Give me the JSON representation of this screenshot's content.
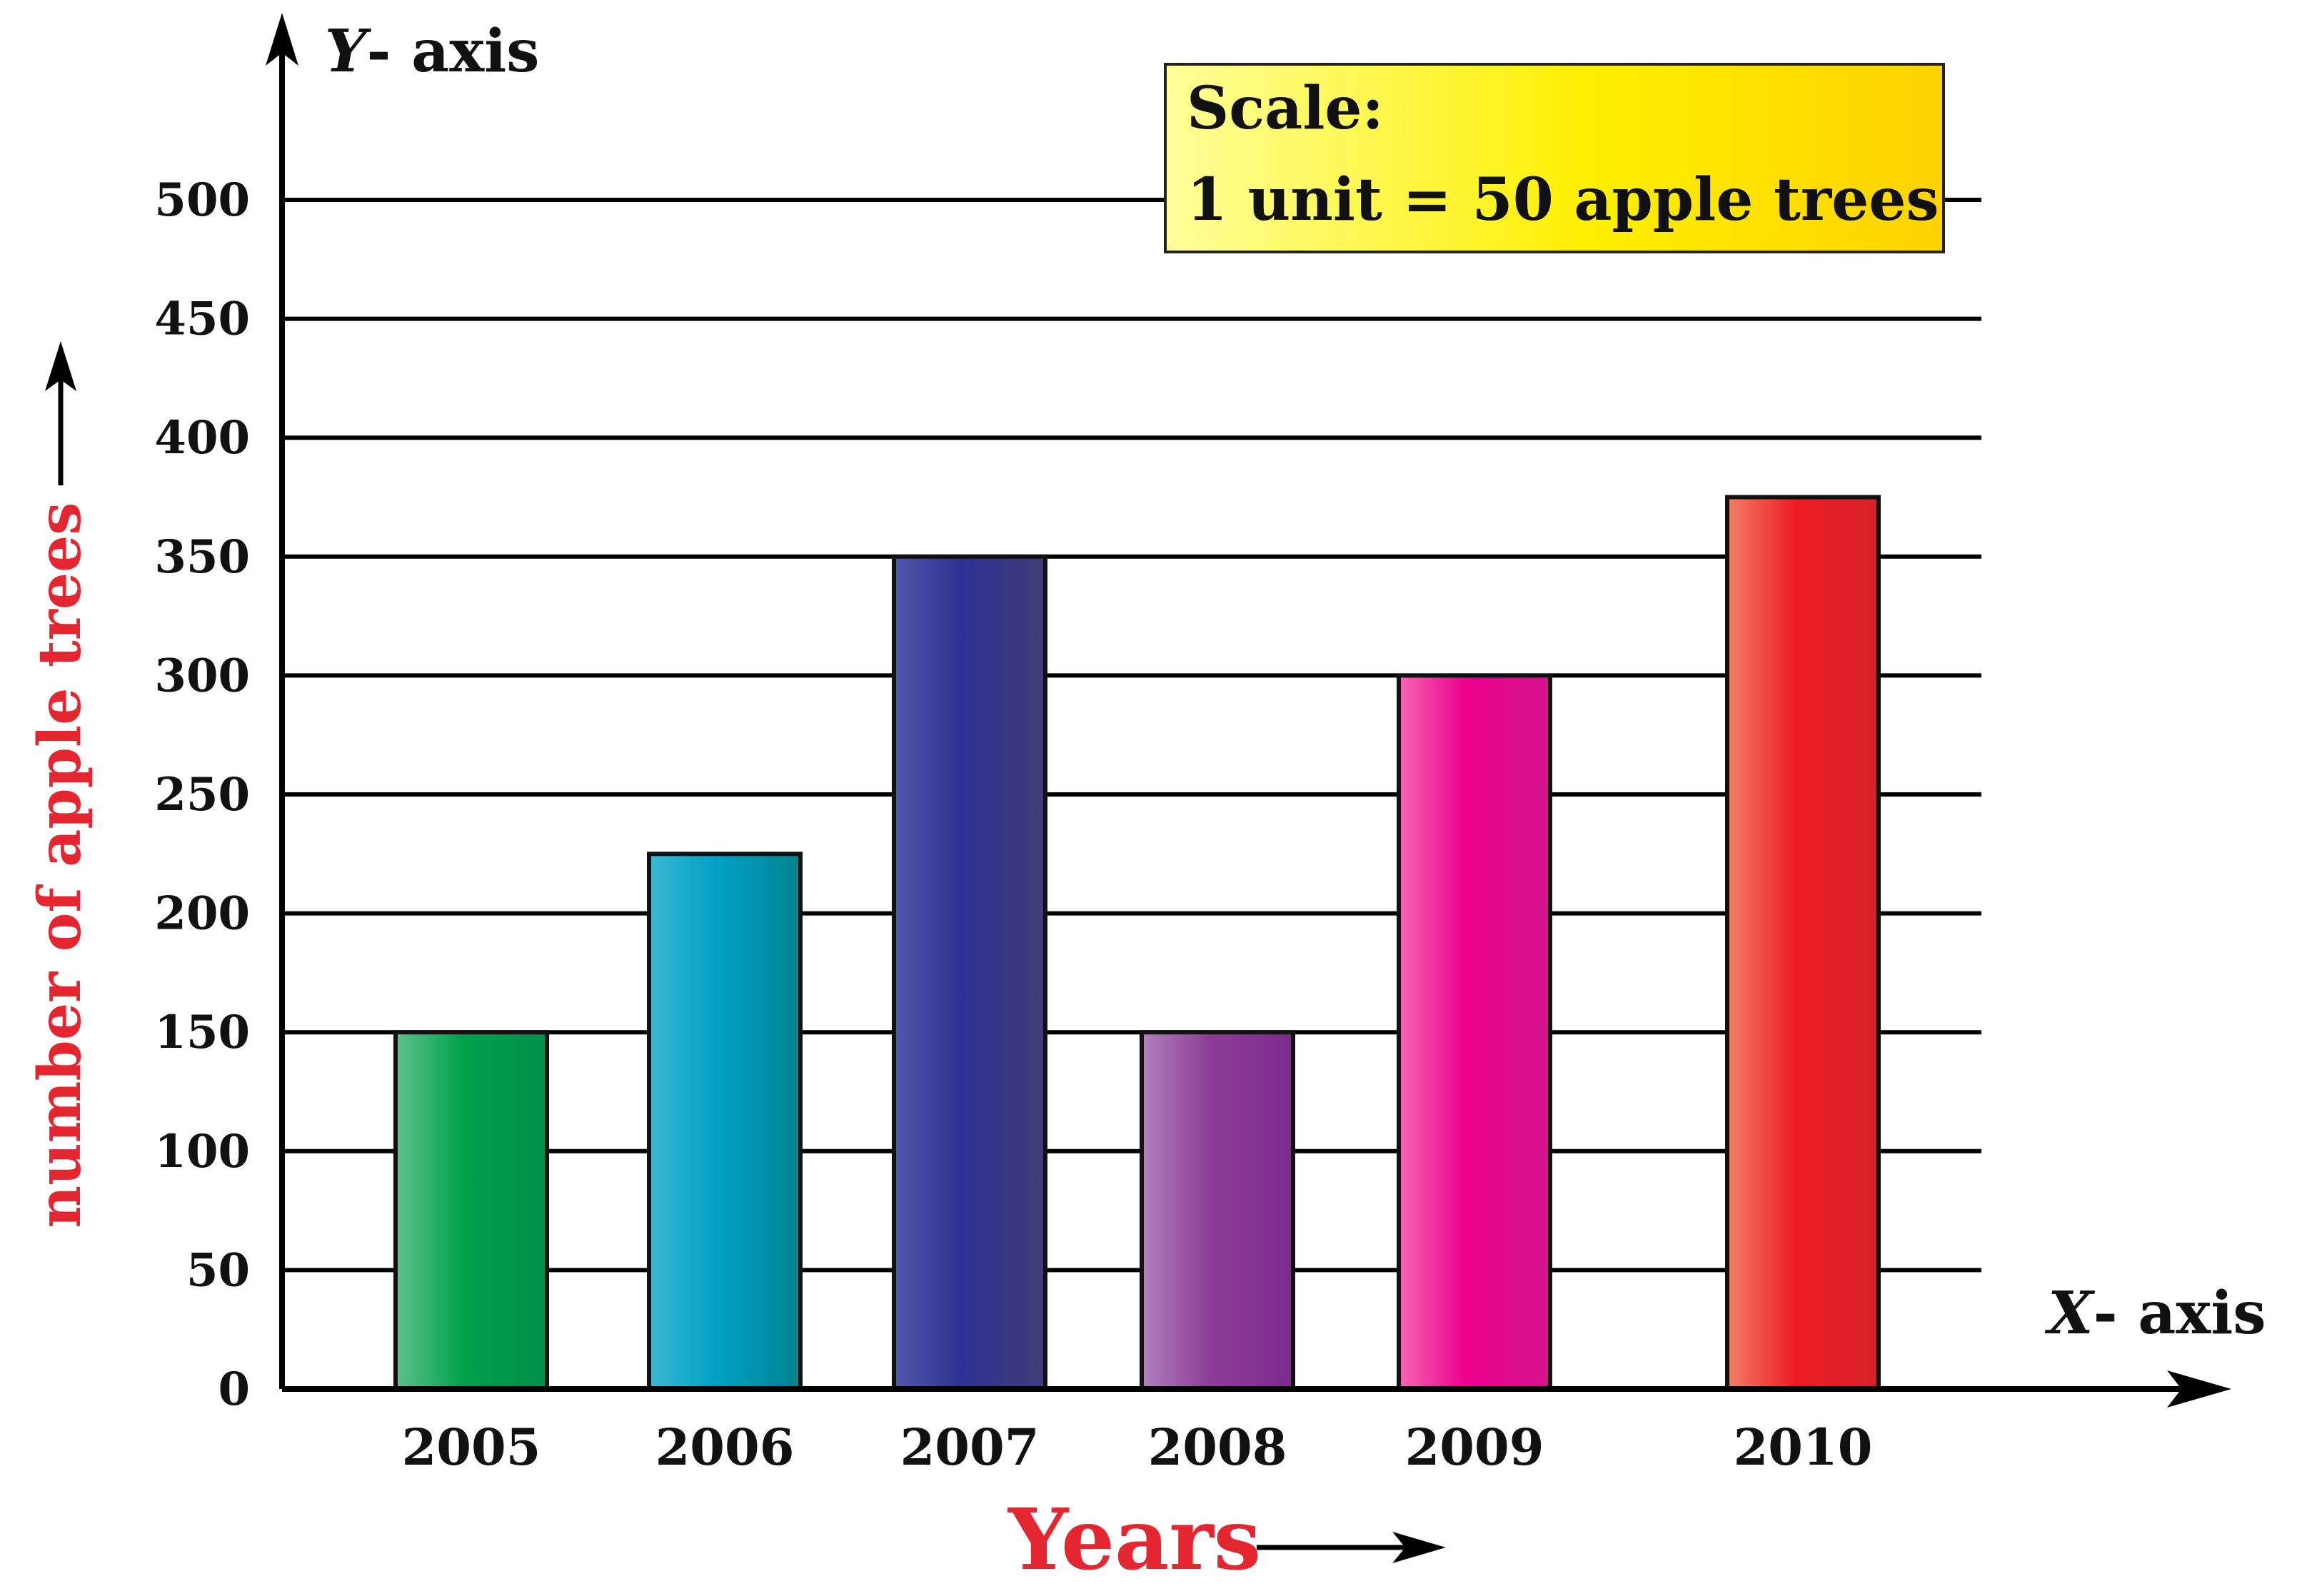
{
  "chart_data": {
    "type": "bar",
    "categories": [
      "2005",
      "2006",
      "2007",
      "2008",
      "2009",
      "2010"
    ],
    "values": [
      150,
      225,
      350,
      150,
      300,
      375
    ],
    "ylim": [
      0,
      500
    ],
    "yticks": [
      "0",
      "50",
      "100",
      "150",
      "200",
      "250",
      "300",
      "350",
      "400",
      "450",
      "500"
    ],
    "y_axis_name_var": "Y",
    "y_axis_name_rest": "- axis",
    "x_axis_name_var": "X",
    "x_axis_name_rest": "- axis",
    "xlabel": "Years",
    "ylabel": "number of apple trees",
    "scale_box": {
      "line1": "Scale:",
      "line2": "1 unit = 50 apple trees"
    },
    "grid": true,
    "bar_colors": [
      [
        "#5cc289",
        "#00a14b",
        "#00904a"
      ],
      [
        "#3cb7d3",
        "#00a0c6",
        "#00838e"
      ],
      [
        "#4f59aa",
        "#2e3192",
        "#3f3d78"
      ],
      [
        "#b27fbd",
        "#8c3d96",
        "#7c2b8c"
      ],
      [
        "#f566b3",
        "#ec008c",
        "#d4148b"
      ],
      [
        "#f47f67",
        "#ed1c24",
        "#d72128"
      ]
    ],
    "colors": {
      "label_red": "#e3262f",
      "scale_box_gradient": [
        "#ffff9a",
        "#ffef00",
        "#ffd200"
      ]
    }
  }
}
